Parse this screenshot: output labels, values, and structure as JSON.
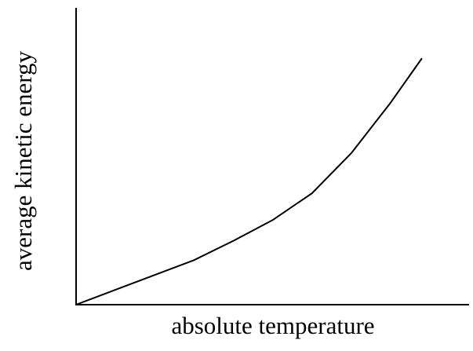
{
  "chart_data": {
    "type": "line",
    "x_label": "absolute temperature",
    "y_label": "average kinetic energy",
    "x": [
      0,
      10,
      20,
      30,
      40,
      50,
      60,
      70,
      80,
      88
    ],
    "values": [
      0,
      5,
      10,
      15,
      21.5,
      28.5,
      37.5,
      51,
      68,
      83
    ],
    "color": "#000000",
    "xlim": [
      0,
      100
    ],
    "ylim": [
      0,
      100
    ]
  }
}
